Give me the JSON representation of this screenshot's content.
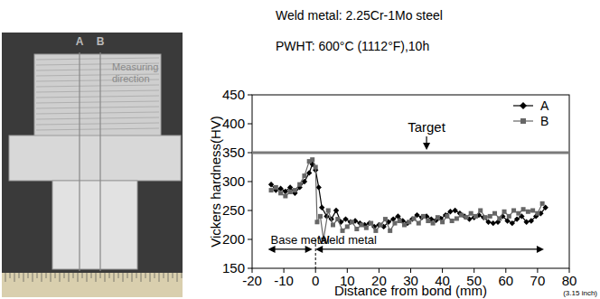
{
  "header": {
    "lines": [
      "Weld metal: 2.25Cr-1Mo steel",
      "PWHT: 600°C (1112°F),10h"
    ]
  },
  "photo": {
    "line_labels": [
      "A",
      "B"
    ],
    "caption": "Measuring direction"
  },
  "chart_data": {
    "type": "line",
    "x_label": "Distance from bond (mm)",
    "x_label_note": "(3.15 inch)",
    "y_label": "Vickers hardness(HV)",
    "xlim": [
      -20,
      80
    ],
    "xticks": [
      -20,
      -10,
      0,
      10,
      20,
      30,
      40,
      50,
      60,
      70,
      80
    ],
    "ylim": [
      150,
      450
    ],
    "yticks": [
      150,
      200,
      250,
      300,
      350,
      400,
      450
    ],
    "grid": false,
    "legend": "upper right",
    "target": {
      "label": "Target",
      "value": 350
    },
    "annotations": [
      {
        "text": "Base metal",
        "x": [
          -15,
          -1
        ],
        "y": 183
      },
      {
        "text": "Weld metal",
        "x": [
          0,
          72
        ],
        "y": 183
      }
    ],
    "series": [
      {
        "name": "A",
        "color": "#000000",
        "marker": "diamond",
        "line_style": "solid",
        "x": [
          -14,
          -12.5,
          -11,
          -9.5,
          -8,
          -6.5,
          -5,
          -3.5,
          -2,
          -1,
          0,
          1,
          2,
          3.5,
          5,
          6.5,
          8,
          9.5,
          11,
          12.5,
          14,
          15.5,
          17,
          18.5,
          20,
          21.5,
          23,
          24.5,
          26,
          27.5,
          29,
          30.5,
          32,
          33.5,
          35,
          36.5,
          38,
          39.5,
          41,
          42.5,
          44,
          45.5,
          47,
          48.5,
          50,
          51.5,
          53,
          54.5,
          56,
          57.5,
          59,
          60.5,
          62,
          63.5,
          65,
          66.5,
          68,
          69.5,
          71,
          72.5
        ],
        "values": [
          295,
          285,
          288,
          283,
          290,
          280,
          290,
          300,
          315,
          330,
          320,
          290,
          255,
          240,
          235,
          250,
          230,
          235,
          230,
          232,
          228,
          225,
          228,
          222,
          225,
          222,
          230,
          235,
          240,
          232,
          228,
          235,
          242,
          238,
          240,
          235,
          233,
          236,
          242,
          248,
          250,
          245,
          240,
          235,
          238,
          242,
          238,
          230,
          228,
          230,
          240,
          232,
          228,
          235,
          240,
          230,
          232,
          240,
          245,
          255
        ]
      },
      {
        "name": "B",
        "color": "#666666",
        "marker": "square",
        "line_style": "solid",
        "x": [
          -14,
          -12.5,
          -11,
          -9.5,
          -8,
          -6.5,
          -5,
          -3.5,
          -2,
          -1,
          0,
          0.5,
          1.5,
          2.5,
          4,
          5.5,
          7,
          8.5,
          10,
          11.5,
          13,
          14.5,
          16,
          17.5,
          19,
          20.5,
          22,
          23.5,
          25,
          26.5,
          28,
          29.5,
          31,
          32.5,
          34,
          35.5,
          37,
          38.5,
          40,
          41.5,
          43,
          44.5,
          46,
          47.5,
          49,
          50.5,
          52,
          53.5,
          55,
          56.5,
          58,
          59.5,
          61,
          62.5,
          64,
          65.5,
          67,
          68.5,
          70,
          71.5
        ],
        "values": [
          285,
          290,
          280,
          275,
          282,
          285,
          295,
          310,
          335,
          338,
          325,
          230,
          240,
          200,
          250,
          225,
          235,
          215,
          222,
          230,
          218,
          225,
          220,
          228,
          215,
          225,
          235,
          215,
          228,
          232,
          225,
          230,
          236,
          228,
          240,
          232,
          228,
          238,
          230,
          240,
          232,
          236,
          242,
          238,
          245,
          240,
          250,
          238,
          240,
          245,
          236,
          248,
          240,
          250,
          245,
          252,
          248,
          250,
          245,
          262
        ]
      }
    ]
  }
}
